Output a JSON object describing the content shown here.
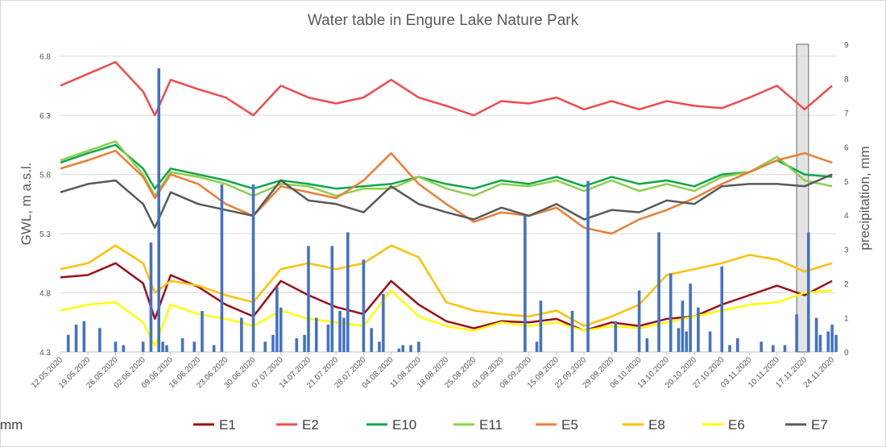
{
  "chart_data": {
    "type": "line",
    "title": "Water table in Engure Lake Nature Park",
    "ylabel": "GWL,  m a.s.l.",
    "y2label": "precipitation,  mm",
    "ylim": [
      4.3,
      6.9
    ],
    "yticks": [
      4.3,
      4.8,
      5.3,
      5.8,
      6.3,
      6.8
    ],
    "y2lim": [
      0,
      9
    ],
    "y2ticks": [
      0,
      1,
      2,
      3,
      4,
      5,
      6,
      7,
      8,
      9
    ],
    "xlim": [
      0,
      197
    ],
    "xtick_labels": [
      "12.05.2020",
      "19.05.2020",
      "26.05.2020",
      "02.06.2020",
      "09.06.2020",
      "16.06.2020",
      "23.06.2020",
      "30.06.2020",
      "07.07.2020",
      "14.07.2020",
      "21.07.2020",
      "28.07.2020",
      "04.08.2020",
      "11.08.2020",
      "18.08.2020",
      "25.08.2020",
      "01.09.2020",
      "08.09.2020",
      "15.09.2020",
      "22.09.2020",
      "29.09.2020",
      "06.10.2020",
      "13.10.2020",
      "20.10.2020",
      "27.10.2020",
      "03.11.2020",
      "10.11.2020",
      "17.11.2020",
      "24.11.2020"
    ],
    "xtick_days": [
      0,
      7,
      14,
      21,
      28,
      35,
      42,
      49,
      56,
      63,
      70,
      77,
      84,
      91,
      98,
      105,
      112,
      119,
      126,
      133,
      140,
      147,
      154,
      161,
      168,
      175,
      182,
      189,
      196
    ],
    "highlight": {
      "x_range": [
        187,
        190
      ]
    },
    "legend_position": "bottom",
    "series": [
      {
        "name": "E1",
        "color": "#9b0f1a",
        "axis": "left",
        "x": [
          0,
          7,
          14,
          21,
          24,
          28,
          35,
          42,
          49,
          56,
          63,
          70,
          77,
          84,
          91,
          98,
          105,
          112,
          119,
          126,
          133,
          140,
          147,
          154,
          161,
          168,
          175,
          182,
          189,
          196
        ],
        "y": [
          4.93,
          4.95,
          5.05,
          4.88,
          4.58,
          4.95,
          4.85,
          4.7,
          4.6,
          4.9,
          4.78,
          4.68,
          4.62,
          4.9,
          4.7,
          4.56,
          4.5,
          4.56,
          4.55,
          4.58,
          4.48,
          4.55,
          4.52,
          4.58,
          4.6,
          4.7,
          4.78,
          4.86,
          4.78,
          4.9
        ]
      },
      {
        "name": "E2",
        "color": "#f04b4b",
        "axis": "left",
        "x": [
          0,
          7,
          14,
          21,
          24,
          28,
          35,
          42,
          49,
          56,
          63,
          70,
          77,
          84,
          91,
          98,
          105,
          112,
          119,
          126,
          133,
          140,
          147,
          154,
          161,
          168,
          175,
          182,
          189,
          196
        ],
        "y": [
          6.55,
          6.65,
          6.75,
          6.5,
          6.3,
          6.6,
          6.52,
          6.45,
          6.3,
          6.55,
          6.45,
          6.4,
          6.45,
          6.6,
          6.45,
          6.38,
          6.3,
          6.42,
          6.4,
          6.45,
          6.35,
          6.42,
          6.35,
          6.42,
          6.38,
          6.36,
          6.45,
          6.55,
          6.35,
          6.55
        ]
      },
      {
        "name": "E10",
        "color": "#0ea84a",
        "axis": "left",
        "x": [
          0,
          7,
          14,
          21,
          24,
          28,
          35,
          42,
          49,
          56,
          63,
          70,
          77,
          84,
          91,
          98,
          105,
          112,
          119,
          126,
          133,
          140,
          147,
          154,
          161,
          168,
          175,
          182,
          189,
          196
        ],
        "y": [
          5.9,
          5.98,
          6.05,
          5.85,
          5.68,
          5.85,
          5.8,
          5.75,
          5.68,
          5.75,
          5.72,
          5.68,
          5.7,
          5.72,
          5.78,
          5.72,
          5.68,
          5.75,
          5.72,
          5.78,
          5.7,
          5.78,
          5.72,
          5.75,
          5.7,
          5.8,
          5.82,
          5.92,
          5.8,
          5.78
        ]
      },
      {
        "name": "E11",
        "color": "#8cd04a",
        "axis": "left",
        "x": [
          0,
          7,
          14,
          21,
          24,
          28,
          35,
          42,
          49,
          56,
          63,
          70,
          77,
          84,
          91,
          98,
          105,
          112,
          119,
          126,
          133,
          140,
          147,
          154,
          161,
          168,
          175,
          182,
          189,
          196
        ],
        "y": [
          5.92,
          6.0,
          6.08,
          5.8,
          5.62,
          5.82,
          5.78,
          5.72,
          5.62,
          5.72,
          5.7,
          5.62,
          5.68,
          5.68,
          5.78,
          5.68,
          5.62,
          5.72,
          5.7,
          5.75,
          5.66,
          5.75,
          5.66,
          5.72,
          5.66,
          5.78,
          5.82,
          5.95,
          5.75,
          5.7
        ]
      },
      {
        "name": "E5",
        "color": "#ed7d31",
        "axis": "left",
        "x": [
          0,
          7,
          14,
          21,
          24,
          28,
          35,
          42,
          49,
          56,
          63,
          70,
          77,
          84,
          91,
          98,
          105,
          112,
          119,
          126,
          133,
          140,
          147,
          154,
          161,
          168,
          175,
          182,
          189,
          196
        ],
        "y": [
          5.85,
          5.92,
          6.0,
          5.78,
          5.6,
          5.8,
          5.72,
          5.55,
          5.45,
          5.7,
          5.65,
          5.6,
          5.75,
          5.98,
          5.72,
          5.55,
          5.4,
          5.48,
          5.45,
          5.52,
          5.35,
          5.3,
          5.42,
          5.5,
          5.6,
          5.72,
          5.82,
          5.92,
          5.98,
          5.9
        ]
      },
      {
        "name": "E8",
        "color": "#ffc000",
        "axis": "left",
        "x": [
          0,
          7,
          14,
          21,
          24,
          28,
          35,
          42,
          49,
          56,
          63,
          70,
          77,
          84,
          91,
          98,
          105,
          112,
          119,
          126,
          133,
          140,
          147,
          154,
          161,
          168,
          175,
          182,
          189,
          196
        ],
        "y": [
          5.0,
          5.05,
          5.2,
          5.05,
          4.8,
          4.9,
          4.86,
          4.78,
          4.72,
          5.0,
          5.05,
          5.0,
          5.05,
          5.2,
          5.1,
          4.72,
          4.65,
          4.62,
          4.6,
          4.65,
          4.52,
          4.6,
          4.7,
          4.95,
          5.0,
          5.05,
          5.12,
          5.08,
          4.98,
          5.05
        ]
      },
      {
        "name": "E6",
        "color": "#ffff00",
        "axis": "left",
        "x": [
          0,
          7,
          14,
          21,
          24,
          28,
          35,
          42,
          49,
          56,
          63,
          70,
          77,
          84,
          91,
          98,
          105,
          112,
          119,
          126,
          133,
          140,
          147,
          154,
          161,
          168,
          175,
          182,
          189,
          196
        ],
        "y": [
          4.65,
          4.7,
          4.72,
          4.55,
          4.35,
          4.7,
          4.62,
          4.58,
          4.52,
          4.65,
          4.58,
          4.55,
          4.52,
          4.82,
          4.6,
          4.52,
          4.48,
          4.55,
          4.52,
          4.55,
          4.48,
          4.52,
          4.5,
          4.55,
          4.6,
          4.65,
          4.7,
          4.72,
          4.8,
          4.82
        ]
      },
      {
        "name": "E7",
        "color": "#595959",
        "axis": "left",
        "x": [
          0,
          7,
          14,
          21,
          24,
          28,
          35,
          42,
          49,
          56,
          63,
          70,
          77,
          84,
          91,
          98,
          105,
          112,
          119,
          126,
          133,
          140,
          147,
          154,
          161,
          168,
          175,
          182,
          189,
          196
        ],
        "y": [
          5.65,
          5.72,
          5.75,
          5.55,
          5.35,
          5.65,
          5.55,
          5.5,
          5.45,
          5.75,
          5.58,
          5.55,
          5.48,
          5.7,
          5.55,
          5.48,
          5.42,
          5.52,
          5.45,
          5.55,
          5.42,
          5.5,
          5.48,
          5.58,
          5.55,
          5.7,
          5.72,
          5.72,
          5.7,
          5.8
        ]
      },
      {
        "name": "mm",
        "color": "#4472c4",
        "axis": "right",
        "x": [
          2,
          4,
          6,
          10,
          14,
          16,
          21,
          23,
          25,
          26,
          27,
          31,
          34,
          36,
          39,
          41,
          46,
          49,
          52,
          54,
          55,
          56,
          60,
          62,
          63,
          65,
          68,
          69,
          71,
          72,
          73,
          77,
          79,
          81,
          82,
          86,
          87,
          89,
          91,
          118,
          121,
          122,
          130,
          134,
          141,
          147,
          149,
          152,
          155,
          157,
          158,
          159,
          160,
          162,
          165,
          168,
          170,
          172,
          178,
          181,
          184,
          187,
          190,
          192,
          193,
          195,
          196,
          197
        ],
        "y": [
          0.5,
          0.8,
          0.9,
          0.7,
          0.3,
          0.2,
          0.3,
          3.2,
          8.3,
          0.3,
          0.2,
          0.4,
          0.3,
          1.2,
          0.2,
          4.9,
          1.0,
          4.9,
          0.3,
          0.5,
          1.9,
          1.3,
          0.4,
          0.5,
          3.1,
          1.0,
          0.8,
          3.1,
          1.2,
          1.0,
          3.5,
          2.7,
          0.7,
          0.3,
          1.7,
          0.1,
          0.2,
          0.2,
          0.3,
          4.0,
          0.3,
          1.5,
          1.2,
          5.0,
          0.9,
          1.8,
          0.4,
          3.5,
          2.3,
          0.7,
          1.5,
          0.6,
          2.0,
          1.3,
          0.6,
          2.5,
          0.2,
          0.4,
          0.3,
          0.2,
          0.2,
          1.1,
          3.5,
          1.0,
          0.5,
          0.6,
          0.8,
          0.5
        ]
      }
    ]
  }
}
